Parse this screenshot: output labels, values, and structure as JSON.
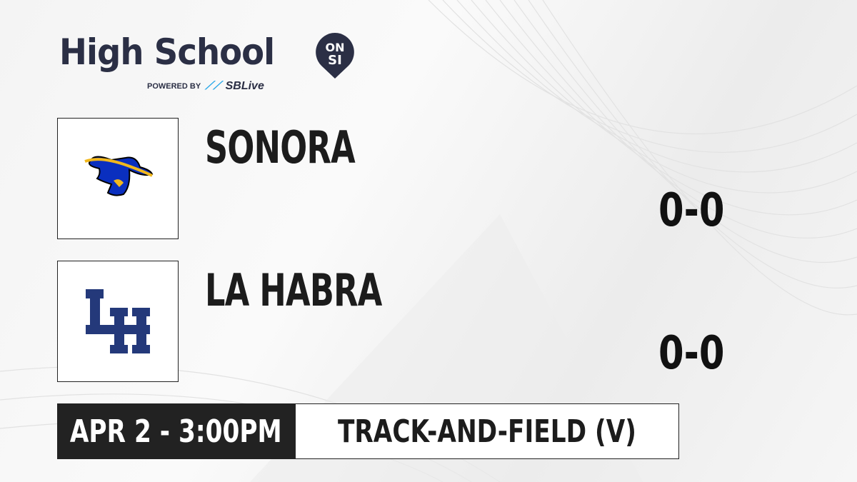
{
  "brand": {
    "title": "High School",
    "badge_top": "ON",
    "badge_bottom": "SI",
    "powered_by": "POWERED BY",
    "sponsor": "SBLive",
    "colors": {
      "navy": "#2b2f45",
      "sponsor_blue": "#2aa8e8"
    }
  },
  "teams": [
    {
      "name": "SONORA",
      "score": "0-0",
      "logo": "raider-hat-icon",
      "logo_colors": [
        "#0a2fbf",
        "#f2b81c"
      ]
    },
    {
      "name": "LA HABRA",
      "score": "0-0",
      "logo": "lh-monogram-icon",
      "logo_colors": [
        "#24397a"
      ]
    }
  ],
  "game": {
    "datetime": "APR 2 - 3:00PM",
    "sport": "TRACK-AND-FIELD (V)"
  }
}
